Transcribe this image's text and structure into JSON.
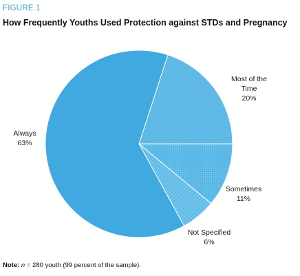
{
  "figure_label": "FIGURE 1",
  "title": "How Frequently Youths Used Protection against STDs and Pregnancy",
  "note": {
    "prefix": "Note:",
    "n_symbol": "n",
    "text": " = 280 youth (99 percent of the sample)."
  },
  "chart_data": {
    "type": "pie",
    "title": "How Frequently Youths Used Protection against STDs and Pregnancy",
    "slices": [
      {
        "label_lines": [
          "Most of the",
          "Time",
          "20%"
        ],
        "name": "Most of the Time",
        "value": 20,
        "color": "#59b7e6",
        "texture": "dots"
      },
      {
        "label_lines": [
          "Sometimes",
          "11%"
        ],
        "name": "Sometimes",
        "value": 11,
        "color": "#5bb8e6",
        "texture": "fine-dots"
      },
      {
        "label_lines": [
          "Not Specified",
          "6%"
        ],
        "name": "Not Specified",
        "value": 6,
        "color": "#6cc0ea",
        "texture": "diagonal-hatch"
      },
      {
        "label_lines": [
          "Always",
          "63%"
        ],
        "name": "Always",
        "value": 63,
        "color": "#3fa9e0",
        "texture": "solid"
      }
    ],
    "start_angle_deg": 18,
    "legend": "none"
  }
}
